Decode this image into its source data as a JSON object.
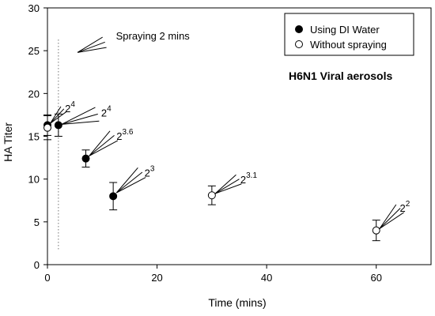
{
  "chart_data": {
    "type": "scatter",
    "title": "H6N1 Viral aerosols",
    "xlabel": "Time (mins)",
    "ylabel": "HA Titer",
    "xlim": [
      0,
      70
    ],
    "ylim": [
      0,
      30
    ],
    "xticks": [
      "0",
      "20",
      "40",
      "60"
    ],
    "yticks": [
      "0",
      "5",
      "10",
      "15",
      "20",
      "25",
      "30"
    ],
    "grid": false,
    "legend_position": "top-right",
    "series": [
      {
        "name": "Using DI Water",
        "marker": "filled-circle",
        "color": "#000000",
        "points": [
          {
            "x": 0,
            "y": 16.3,
            "err": 1.2
          },
          {
            "x": 2,
            "y": 16.3,
            "err": 1.3
          },
          {
            "x": 7,
            "y": 12.4,
            "err": 1.0
          },
          {
            "x": 12,
            "y": 8.0,
            "err": 1.6
          }
        ]
      },
      {
        "name": "Without spraying",
        "marker": "open-circle",
        "color": "#000000",
        "points": [
          {
            "x": 0,
            "y": 16.0,
            "err": 1.4
          },
          {
            "x": 30,
            "y": 8.1,
            "err": 1.1
          },
          {
            "x": 60,
            "y": 4.0,
            "err": 1.2
          }
        ]
      }
    ],
    "reference_line": {
      "x": 2,
      "style": "dotted",
      "y_range": [
        1.8,
        26.5
      ]
    },
    "annotations": [
      {
        "text": "Spraying 2 mins",
        "x_text": 12.5,
        "y_text": 26.3,
        "arrow_to": [
          5.5,
          24.8
        ],
        "arrow_from": [
          10.5,
          26.0
        ]
      },
      {
        "base": "2",
        "exp": "4",
        "x_text": 3.2,
        "y_text": 17.8,
        "arrow_to": [
          0.5,
          16.5
        ],
        "arrow_from": [
          3.0,
          18.2
        ]
      },
      {
        "base": "2",
        "exp": "4",
        "x_text": 9.8,
        "y_text": 17.3,
        "arrow_to": [
          2.6,
          16.4
        ],
        "arrow_from": [
          9.2,
          17.6
        ]
      },
      {
        "base": "2",
        "exp": "3.6",
        "x_text": 12.6,
        "y_text": 14.6,
        "arrow_to": [
          7.6,
          12.7
        ],
        "arrow_from": [
          12.2,
          15.1
        ]
      },
      {
        "base": "2",
        "exp": "3",
        "x_text": 17.7,
        "y_text": 10.3,
        "arrow_to": [
          12.6,
          8.4
        ],
        "arrow_from": [
          17.3,
          10.8
        ]
      },
      {
        "base": "2",
        "exp": "3.1",
        "x_text": 35.2,
        "y_text": 9.5,
        "arrow_to": [
          30.6,
          8.3
        ],
        "arrow_from": [
          35.0,
          10.0
        ]
      },
      {
        "base": "2",
        "exp": "2",
        "x_text": 64.3,
        "y_text": 6.2,
        "arrow_to": [
          60.6,
          4.2
        ],
        "arrow_from": [
          64.4,
          6.6
        ]
      }
    ]
  }
}
